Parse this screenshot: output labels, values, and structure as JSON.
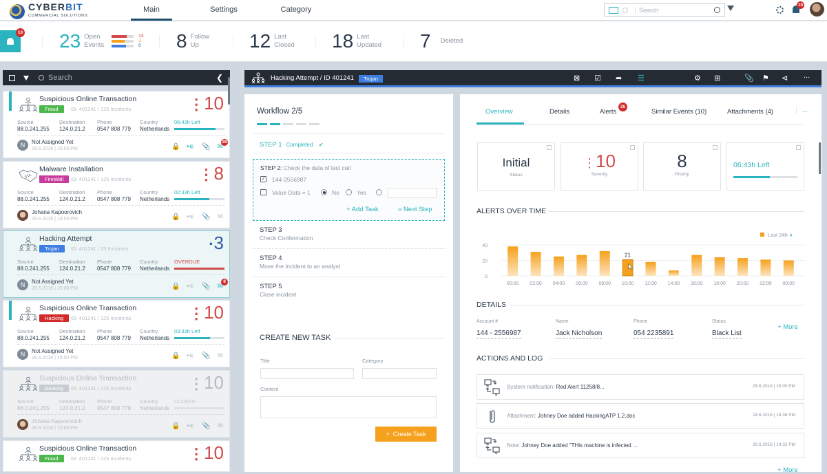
{
  "header": {
    "brand": "CYBER",
    "brand_accent": "BIT",
    "brand_sub": "COMMERCIAL SOLUTIONS",
    "nav": [
      "Main",
      "Settings",
      "Category"
    ],
    "search_placeholder": "Search",
    "notifications": "10",
    "icons": [
      "monitor-icon",
      "globe-icon",
      "search-icon",
      "filter-icon",
      "gear-icon",
      "bell-icon",
      "avatar"
    ]
  },
  "stats": {
    "alert_badge": "10",
    "open_events": {
      "num": "23",
      "label1": "Open",
      "label2": "Events"
    },
    "breakdown": [
      {
        "value": "14",
        "color": "#d24a4a",
        "fraction": 0.7
      },
      {
        "value": "3",
        "color": "#f5a11d",
        "fraction": 0.6
      },
      {
        "value": "6",
        "color": "#3d7ee0",
        "fraction": 0.65
      }
    ],
    "follow_up": {
      "num": "8",
      "label1": "Follow",
      "label2": "Up"
    },
    "last_closed": {
      "num": "12",
      "label1": "Last",
      "label2": "Closed"
    },
    "last_updated": {
      "num": "18",
      "label1": "Last",
      "label2": "Updated"
    },
    "deleted": {
      "num": "7",
      "label": "Deleted"
    }
  },
  "list": {
    "search_placeholder": "Search",
    "cols": {
      "source": "Source",
      "destination": "Destination",
      "phone": "Phone",
      "country": "Country"
    },
    "cards": [
      {
        "title": "Suspicious Online Transaction",
        "tag": "Fraud",
        "tag_color": "#4cb84c",
        "id": "ID: 401241 / 125 Incidents",
        "sev": "10",
        "source": "88.0.241.255",
        "dest": "124.0.21.2",
        "phone": "0547 808 779",
        "country": "Netherlands",
        "timer": "06:43h Left",
        "progress": 0.82,
        "who": "Not Assigned Yet",
        "initial": "N",
        "when": "28.6.2016 | 15:00 PM",
        "mail_badge": "26"
      },
      {
        "title": "Malware Installation",
        "tag": "FireWall",
        "tag_color": "#c93a9e",
        "id": "ID: 401241 / 125 Incidents",
        "sev": "8",
        "source": "88.0.241.255",
        "dest": "124.0.21.2",
        "phone": "0547 808 779",
        "country": "Netherlands",
        "timer": "02:33h Left",
        "progress": 0.7,
        "who": "Johana Kapoorovich",
        "initial": "",
        "when": "28.6.2016 | 15:00 PM",
        "mail_badge": ""
      },
      {
        "title": "Hacking Attempt",
        "tag": "Trojan",
        "tag_color": "#3d7ee0",
        "id": "ID: 401241 / 25 Incidents",
        "sev": "3",
        "source": "88.0.241.255",
        "dest": "124.0.21.2",
        "phone": "0547 808 779",
        "country": "Netherlands",
        "timer": "OVERDUE",
        "progress": 1.0,
        "who": "Not Assigned Yet",
        "initial": "N",
        "when": "28.6.2016 | 15:00 PM",
        "mail_badge": "8"
      },
      {
        "title": "Suspicious Online Transaction",
        "tag": "Hacking",
        "tag_color": "#d22a2a",
        "id": "ID: 401241 / 125 Incidents",
        "sev": "10",
        "source": "88.0.241.255",
        "dest": "124.0.21.2",
        "phone": "0547 808 779",
        "country": "Netherlands",
        "timer": "03:33h Left",
        "progress": 0.71,
        "who": "Not Assigned Yet",
        "initial": "N",
        "when": "28.6.2016 | 15:00 PM",
        "mail_badge": ""
      },
      {
        "title": "Suspicious Online Transaction",
        "tag": "Banking",
        "tag_color": "#c3c9cf",
        "id": "ID: 401241 / 125 Incidents",
        "sev": "10",
        "source": "88.0.241.255",
        "dest": "124.0.21.2",
        "phone": "0547 808 779",
        "country": "Netherlands",
        "timer": "CLOSED",
        "progress": 0,
        "who": "Johana Kapoorovich",
        "initial": "",
        "when": "28.6.2016 | 15:00 PM",
        "mail_badge": ""
      },
      {
        "title": "Suspicious Online Transaction",
        "tag": "Fraud",
        "tag_color": "#4cb84c",
        "id": "ID: 401241 / 125 Incidents",
        "sev": "10"
      }
    ]
  },
  "incident": {
    "title": "Hacking Attempt / ID 401241",
    "tag": "Trojan",
    "toolbar_icons": [
      "close-box-icon",
      "checkbox-icon",
      "share-out-icon",
      "list-icon",
      "gear-icon",
      "add-box-icon",
      "paperclip-icon",
      "tag-icon",
      "share-icon",
      "more-icon"
    ],
    "more": "..."
  },
  "workflow": {
    "title": "Workflow  2/5",
    "progress_steps": 5,
    "current": 2,
    "step1": "STEP 1",
    "step1_status": "Completed",
    "step2_label": "STEP 2:",
    "step2_desc": "Check the data of last call",
    "check1": "144-2556987",
    "check2": "Value Data = 1",
    "radio_no": "No",
    "radio_yes": "Yes",
    "add_task": "Add Task",
    "next_step": "Next Step",
    "steps": [
      {
        "label": "STEP 3",
        "desc": "Check Confermation"
      },
      {
        "label": "STEP 4",
        "desc": "Move the incident to an analyst"
      },
      {
        "label": "STEP 5",
        "desc": "Close incident"
      }
    ],
    "create_title": "CREATE NEW TASK",
    "field_title": "Title",
    "field_category": "Category",
    "field_content": "Content",
    "create_button": "Create Task"
  },
  "overview": {
    "tabs": [
      "Overview",
      "Details",
      "Alerts",
      "Similar Events (10)",
      "Attachments (4)",
      "..."
    ],
    "alerts_badge": "25",
    "kpis": {
      "status": {
        "value": "Initial",
        "label": "Status"
      },
      "severity": {
        "value": "10",
        "label": "Severity"
      },
      "priority": {
        "value": "8",
        "label": "Priority"
      },
      "timer": {
        "value": "06:43h Left",
        "progress": 0.57
      }
    },
    "chart_title": "ALERTS OVER TIME",
    "details_title": "DETAILS",
    "details": [
      {
        "key": "Account #",
        "value": "144 - 2556987"
      },
      {
        "key": "Name",
        "value": "Jack Nicholson"
      },
      {
        "key": "Phone",
        "value": "054 2235891"
      },
      {
        "key": "Status",
        "value": "Black List"
      }
    ],
    "more": "More",
    "log_title": "ACTIONS AND LOG",
    "log": [
      {
        "icon": "transfer-icon",
        "prefix": "System notification:",
        "text": "Red Alert 11258/8...",
        "time": "28.6.2016 | 15:00 PM"
      },
      {
        "icon": "paperclip-icon",
        "prefix": "Attachment:",
        "text": "Johney Doe added HackingATP 1.2.doc",
        "time": "28.6.2016 | 14:38 PM"
      },
      {
        "icon": "transfer-icon",
        "prefix": "Note:",
        "text": "Johney Doe added \"THis machine is infected ...",
        "time": "28.6.2016 | 14:32 PM"
      }
    ],
    "log_more": "More"
  },
  "chart_data": {
    "type": "bar",
    "title": "ALERTS OVER TIME",
    "categories": [
      "00:00",
      "02:00",
      "04:00",
      "06:00",
      "08:00",
      "10:00",
      "12:00",
      "14:00",
      "16:00",
      "18:00",
      "20:00",
      "22:00",
      "00:00"
    ],
    "values": [
      38,
      31,
      25,
      27,
      32,
      21,
      18,
      7,
      27,
      24,
      23,
      21,
      20
    ],
    "highlight_index": 5,
    "highlight_label": "21",
    "legend": "Last 24h",
    "yticks": [
      0,
      20,
      40
    ],
    "ylim": [
      0,
      40
    ],
    "color": "#f5a11d",
    "grid": true,
    "legend_position": "top-right"
  }
}
